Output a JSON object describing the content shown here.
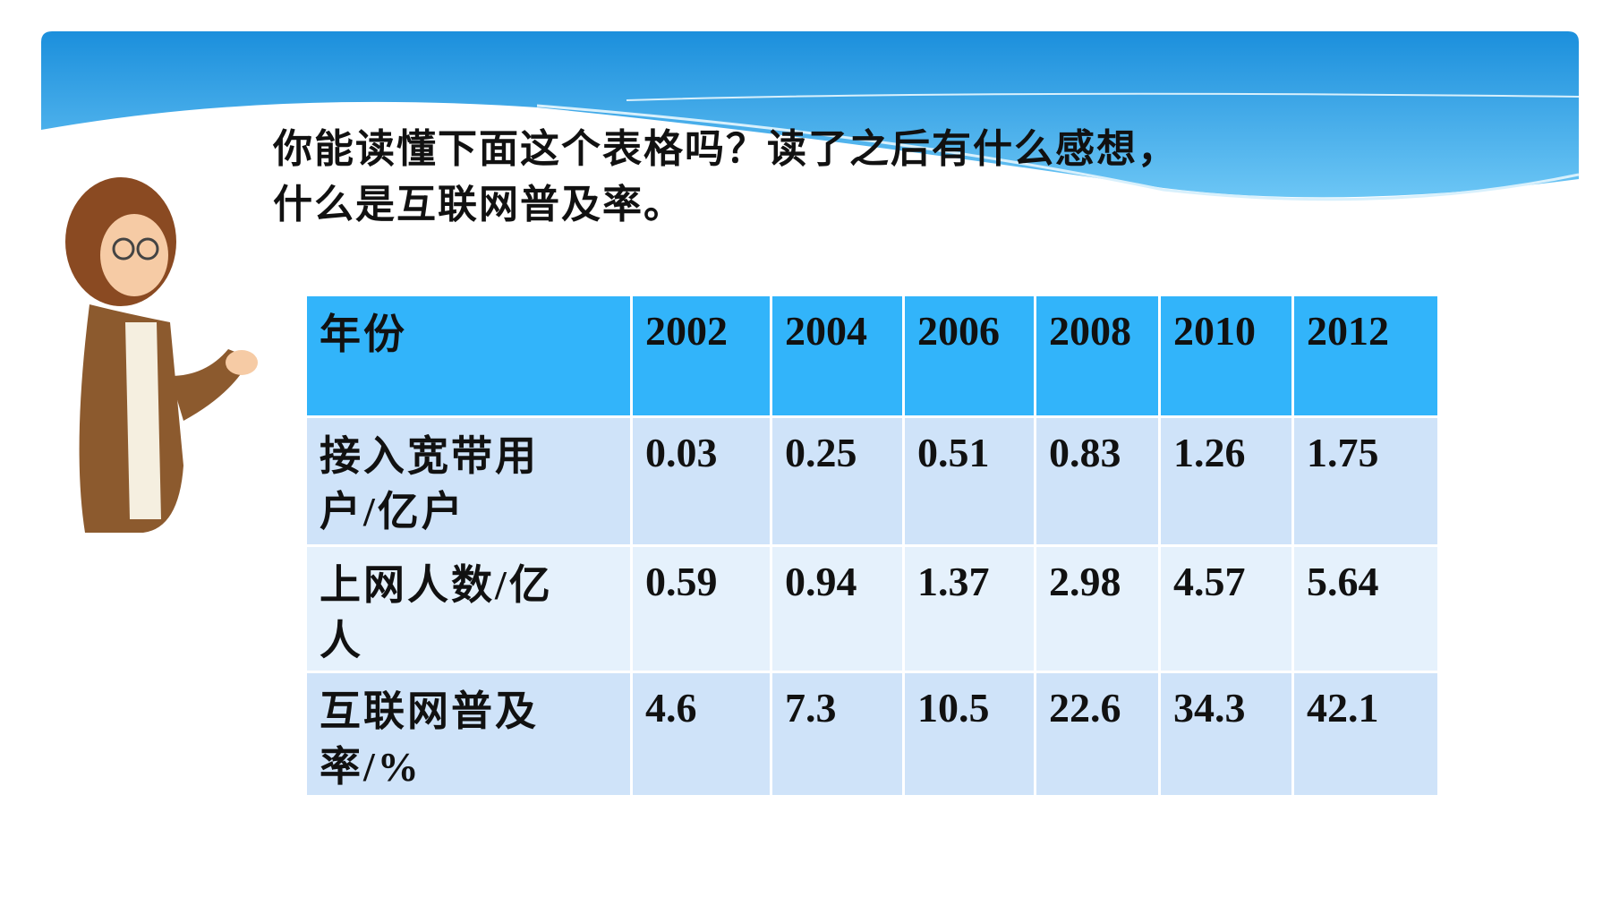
{
  "header": {
    "lines": [
      "你能读懂下面这个表格吗？读了之后有什么感想，",
      "什么是互联网普及率。"
    ]
  },
  "table": {
    "rows": [
      [
        "年份",
        2002,
        2004,
        2006,
        2008,
        2010,
        2012
      ],
      [
        "接入宽带用户/亿户",
        0.03,
        0.25,
        0.51,
        0.83,
        1.26,
        1.75
      ],
      [
        "上网人数/亿人",
        0.59,
        0.94,
        1.37,
        2.98,
        4.57,
        5.64
      ],
      [
        "互联网普及率/%",
        4.6,
        7.3,
        10.5,
        22.6,
        34.3,
        42.1
      ]
    ]
  }
}
